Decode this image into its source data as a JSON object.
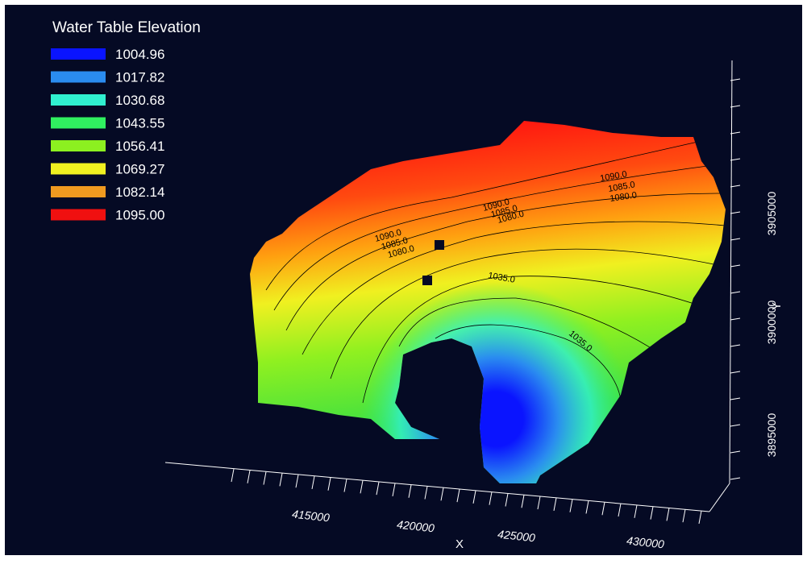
{
  "legend": {
    "title": "Water Table Elevation",
    "items": [
      {
        "label": "1004.96",
        "color": "#0a14ff"
      },
      {
        "label": "1017.82",
        "color": "#2a8cf0"
      },
      {
        "label": "1030.68",
        "color": "#30f0d0"
      },
      {
        "label": "1043.55",
        "color": "#30f060"
      },
      {
        "label": "1056.41",
        "color": "#8cf020"
      },
      {
        "label": "1069.27",
        "color": "#f0f020"
      },
      {
        "label": "1082.14",
        "color": "#f09a20"
      },
      {
        "label": "1095.00",
        "color": "#f01010"
      }
    ]
  },
  "x_axis": {
    "label": "X",
    "ticks": [
      "415000",
      "420000",
      "425000",
      "430000"
    ]
  },
  "y_axis": {
    "label": "Y",
    "ticks": [
      "3905000",
      "3900000",
      "3895000"
    ]
  },
  "contour_labels": [
    "1090.0",
    "1085.0",
    "1080.0",
    "1090.0",
    "1085.0",
    "1080.0",
    "1090.0",
    "1085.0",
    "1080.0",
    "1035.0",
    "1035.0"
  ]
}
